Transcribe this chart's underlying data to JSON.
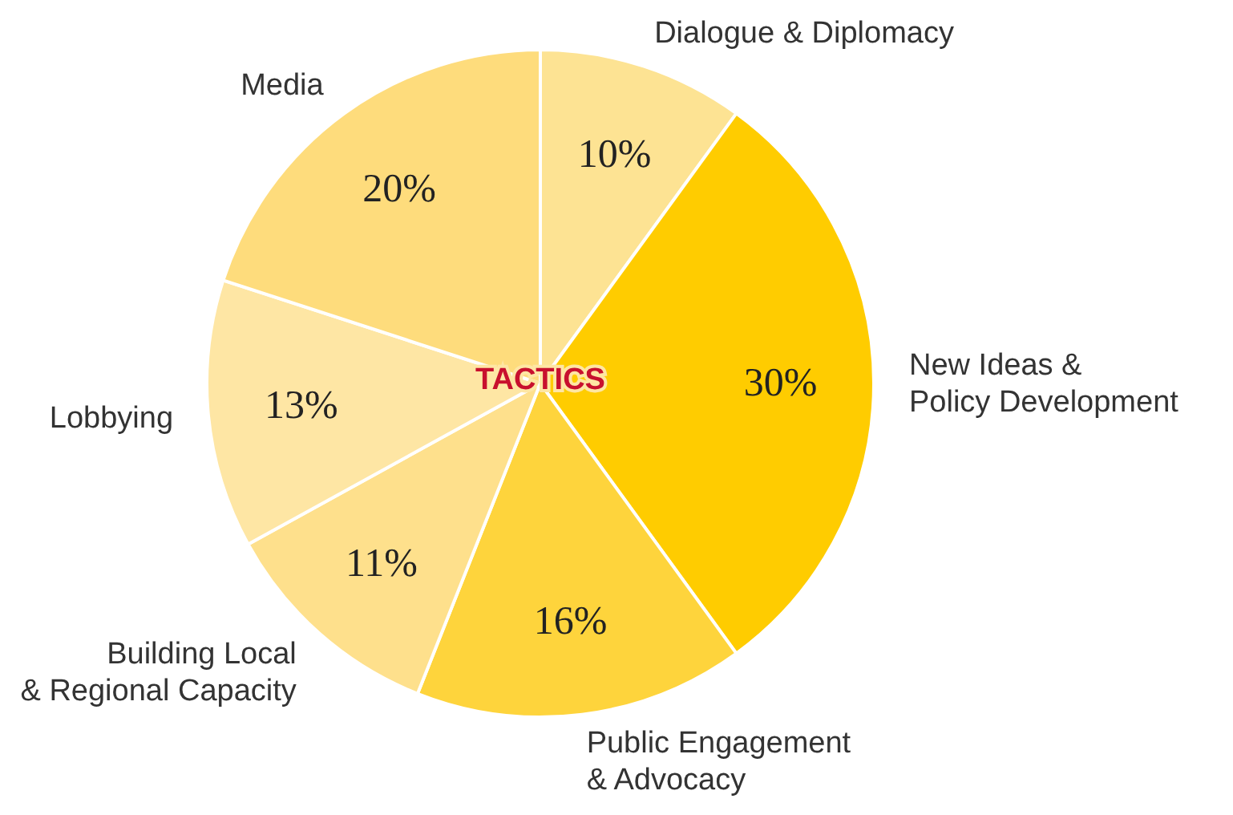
{
  "chart_data": {
    "type": "pie",
    "title": "TACTICS",
    "categories": [
      "Dialogue & Diplomacy",
      "New Ideas &\nPolicy Development",
      "Public Engagement\n& Advocacy",
      "Building Local\n& Regional Capacity",
      "Lobbying",
      "Media"
    ],
    "values": [
      10,
      30,
      16,
      11,
      13,
      20
    ],
    "value_labels": [
      "10%",
      "30%",
      "16%",
      "11%",
      "13%",
      "20%"
    ],
    "colors": [
      "#fde393",
      "#ffcc00",
      "#fed43c",
      "#fee08c",
      "#fee6a4",
      "#fedc7c"
    ]
  }
}
